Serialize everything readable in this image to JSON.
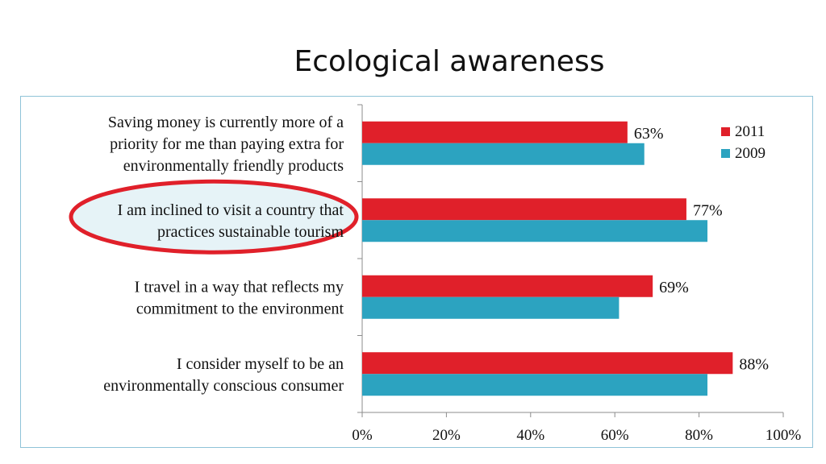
{
  "page": {
    "title": "Ecological awareness"
  },
  "chart_data": {
    "type": "bar",
    "orientation": "horizontal",
    "categories": [
      [
        "Saving money is currently more of a",
        "priority for me than paying extra for",
        "environmentally friendly products"
      ],
      [
        "I am inclined to visit a country that",
        "practices sustainable tourism"
      ],
      [
        "I travel in a way that reflects my",
        "commitment to the environment"
      ],
      [
        "I consider myself to be an",
        "environmentally conscious consumer"
      ]
    ],
    "series": [
      {
        "name": "2011",
        "color": "#e0202a",
        "values": [
          63,
          77,
          69,
          88
        ],
        "labels": [
          "63%",
          "77%",
          "69%",
          "88%"
        ]
      },
      {
        "name": "2009",
        "color": "#2ca3c0",
        "values": [
          67,
          82,
          61,
          82
        ]
      }
    ],
    "xlim": [
      0,
      100
    ],
    "xticks": [
      0,
      20,
      40,
      60,
      80,
      100
    ],
    "xtick_labels": [
      "0%",
      "20%",
      "40%",
      "60%",
      "80%",
      "100%"
    ],
    "legend": "top-right",
    "grid": false,
    "highlight": {
      "category_index": 1,
      "shape": "ellipse",
      "color": "#e0202a"
    }
  }
}
